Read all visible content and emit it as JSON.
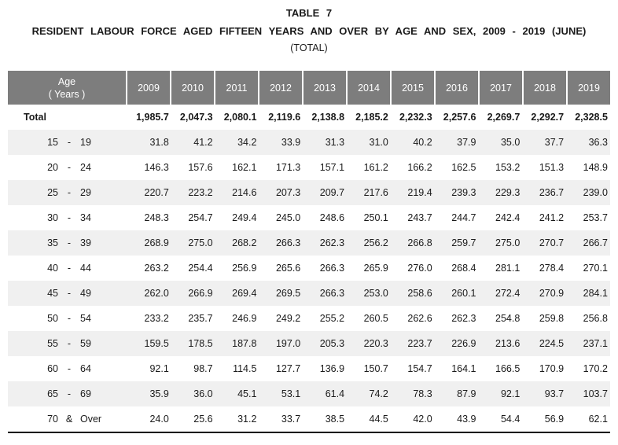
{
  "title": {
    "line1": "TABLE  7",
    "line2": "RESIDENT  LABOUR  FORCE  AGED  FIFTEEN  YEARS  AND  OVER  BY  AGE  AND  SEX,  2009 - 2019  (JUNE)",
    "line3": "(TOTAL)"
  },
  "table": {
    "age_header": {
      "line1": "Age",
      "line2": "( Years )"
    },
    "years": [
      "2009",
      "2010",
      "2011",
      "2012",
      "2013",
      "2014",
      "2015",
      "2016",
      "2017",
      "2018",
      "2019"
    ],
    "total_row": {
      "label": "Total",
      "values": [
        "1,985.7",
        "2,047.3",
        "2,080.1",
        "2,119.6",
        "2,138.8",
        "2,185.2",
        "2,232.3",
        "2,257.6",
        "2,269.7",
        "2,292.7",
        "2,328.5"
      ]
    },
    "rows": [
      {
        "from": "15",
        "sep": "-",
        "to": "19",
        "values": [
          "31.8",
          "41.2",
          "34.2",
          "33.9",
          "31.3",
          "31.0",
          "40.2",
          "37.9",
          "35.0",
          "37.7",
          "36.3"
        ]
      },
      {
        "from": "20",
        "sep": "-",
        "to": "24",
        "values": [
          "146.3",
          "157.6",
          "162.1",
          "171.3",
          "157.1",
          "161.2",
          "166.2",
          "162.5",
          "153.2",
          "151.3",
          "148.9"
        ]
      },
      {
        "from": "25",
        "sep": "-",
        "to": "29",
        "values": [
          "220.7",
          "223.2",
          "214.6",
          "207.3",
          "209.7",
          "217.6",
          "219.4",
          "239.3",
          "229.3",
          "236.7",
          "239.0"
        ]
      },
      {
        "from": "30",
        "sep": "-",
        "to": "34",
        "values": [
          "248.3",
          "254.7",
          "249.4",
          "245.0",
          "248.6",
          "250.1",
          "243.7",
          "244.7",
          "242.4",
          "241.2",
          "253.7"
        ]
      },
      {
        "from": "35",
        "sep": "-",
        "to": "39",
        "values": [
          "268.9",
          "275.0",
          "268.2",
          "266.3",
          "262.3",
          "256.2",
          "266.8",
          "259.7",
          "275.0",
          "270.7",
          "266.7"
        ]
      },
      {
        "from": "40",
        "sep": "-",
        "to": "44",
        "values": [
          "263.2",
          "254.4",
          "256.9",
          "265.6",
          "266.3",
          "265.9",
          "276.0",
          "268.4",
          "281.1",
          "278.4",
          "270.1"
        ]
      },
      {
        "from": "45",
        "sep": "-",
        "to": "49",
        "values": [
          "262.0",
          "266.9",
          "269.4",
          "269.5",
          "266.3",
          "253.0",
          "258.6",
          "260.1",
          "272.4",
          "270.9",
          "284.1"
        ]
      },
      {
        "from": "50",
        "sep": "-",
        "to": "54",
        "values": [
          "233.2",
          "235.7",
          "246.9",
          "249.2",
          "255.2",
          "260.5",
          "262.6",
          "262.3",
          "254.8",
          "259.8",
          "256.8"
        ]
      },
      {
        "from": "55",
        "sep": "-",
        "to": "59",
        "values": [
          "159.5",
          "178.5",
          "187.8",
          "197.0",
          "205.3",
          "220.3",
          "223.7",
          "226.9",
          "213.6",
          "224.5",
          "237.1"
        ]
      },
      {
        "from": "60",
        "sep": "-",
        "to": "64",
        "values": [
          "92.1",
          "98.7",
          "114.5",
          "127.7",
          "136.9",
          "150.7",
          "154.7",
          "164.1",
          "166.5",
          "170.9",
          "170.2"
        ]
      },
      {
        "from": "65",
        "sep": "-",
        "to": "69",
        "values": [
          "35.9",
          "36.0",
          "45.1",
          "53.1",
          "61.4",
          "74.2",
          "78.3",
          "87.9",
          "92.1",
          "93.7",
          "103.7"
        ]
      },
      {
        "from": "70",
        "sep": "&",
        "to": "Over",
        "values": [
          "24.0",
          "25.6",
          "31.2",
          "33.7",
          "38.5",
          "44.5",
          "42.0",
          "43.9",
          "54.4",
          "56.9",
          "62.1"
        ]
      }
    ],
    "colors": {
      "header_bg": "#7d7d7d",
      "header_text": "#ffffff",
      "row_alt_bg": "#f0f0f0",
      "bottom_rule": "#000000"
    }
  }
}
